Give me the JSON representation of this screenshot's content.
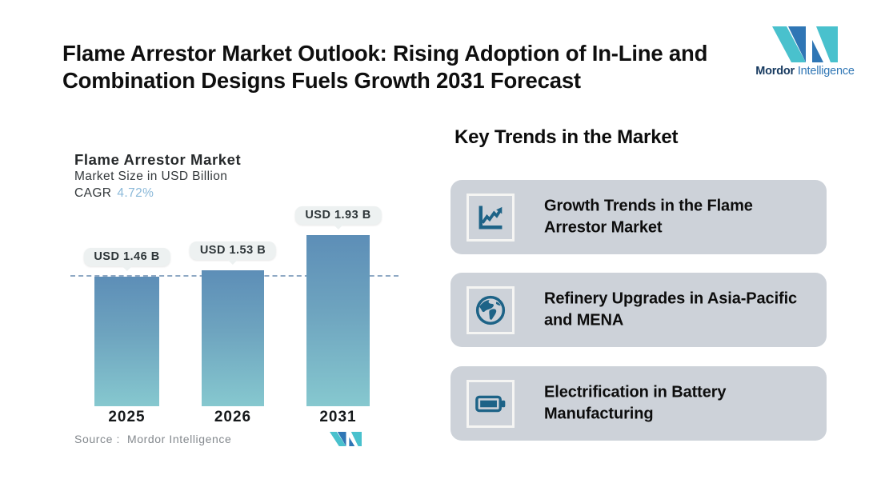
{
  "header": {
    "title": "Flame Arrestor Market Outlook: Rising Adoption of In-Line and Combination Designs Fuels Growth 2031 Forecast"
  },
  "brand": {
    "name_bold": "Mordor",
    "name_regular": "Intelligence",
    "teal": "#49c1cd",
    "blue": "#2f76b5"
  },
  "chart": {
    "title": "Flame Arrestor Market",
    "subtitle": "Market Size in USD Billion",
    "cagr_label": "CAGR",
    "cagr_value": "4.72%",
    "source_label": "Source :",
    "source_value": "Mordor Intelligence"
  },
  "chart_data": {
    "type": "bar",
    "title": "Flame Arrestor Market",
    "ylabel": "Market Size in USD Billion",
    "cagr_percent": "4.72%",
    "categories": [
      "2025",
      "2026",
      "2031"
    ],
    "values": [
      1.46,
      1.53,
      1.93
    ],
    "value_labels": [
      "USD 1.46 B",
      "USD 1.53 B",
      "USD 1.93 B"
    ],
    "ylim": [
      0,
      1.93
    ],
    "grid": false,
    "reference_line": {
      "style": "dashed",
      "at_value": 1.46,
      "color": "#8fa9c4"
    },
    "bar_color_top": "#5d8eb7",
    "bar_color_bottom": "#86c8cf"
  },
  "trends": {
    "heading": "Key Trends in the Market",
    "cards": [
      {
        "icon": "line-chart-icon",
        "title": "Growth Trends in the Flame Arrestor Market"
      },
      {
        "icon": "globe-icon",
        "title": "Refinery Upgrades in Asia-Pacific and MENA"
      },
      {
        "icon": "battery-icon",
        "title": "Electrification in Battery Manufacturing"
      }
    ]
  },
  "colors": {
    "card_background": "#cdd2d9",
    "icon_teal": "#1d6387",
    "pill_background": "#edf1f1",
    "dashed_line": "#8fa9c4",
    "cagr_value_text": "#8bb9d9"
  }
}
